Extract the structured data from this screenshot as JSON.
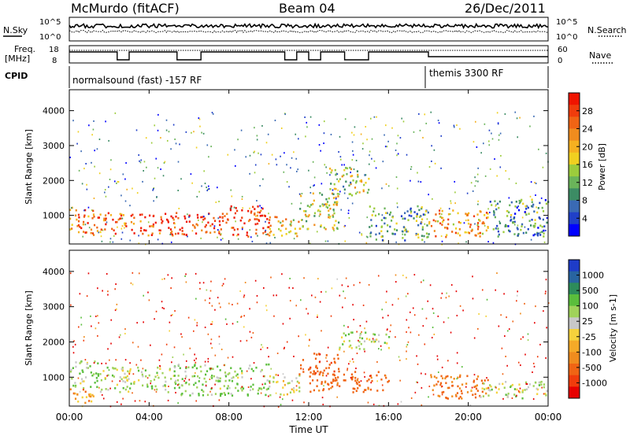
{
  "header": {
    "station": "McMurdo (fitACF)",
    "beam": "Beam 04",
    "date": "26/Dec/2011"
  },
  "noise_panel": {
    "left_label": "N.Sky",
    "right_label": "N.Search",
    "left_ticks": [
      "10^5",
      "10^0"
    ],
    "right_ticks": [
      "10^5",
      "10^0"
    ]
  },
  "freq_panel": {
    "left_label_1": "Freq.",
    "left_label_2": "[MHz]",
    "right_label": "Nave",
    "left_ticks": [
      "18",
      "8"
    ],
    "right_ticks": [
      "60",
      "0"
    ]
  },
  "cpid_panel": {
    "label": "CPID",
    "modes": [
      {
        "name": "normalsound (fast) -157 RF",
        "start_hour": 0
      },
      {
        "name": "themis 3300 RF",
        "start_hour": 18
      }
    ]
  },
  "power_panel": {
    "ylabel": "Slant Range [km]",
    "y_ticks": [
      "1000",
      "2000",
      "3000",
      "4000"
    ],
    "colorbar_label": "Power [dB]",
    "colorbar_ticks": [
      "4",
      "8",
      "12",
      "16",
      "20",
      "24",
      "28"
    ],
    "colors": [
      "#0000ff",
      "#2040c8",
      "#3a6ab4",
      "#3c8c64",
      "#6ab45a",
      "#9ccc3c",
      "#f0d020",
      "#f5b020",
      "#f08c1e",
      "#f06414",
      "#f03c0c",
      "#f01400"
    ]
  },
  "velocity_panel": {
    "ylabel": "Slant Range [km]",
    "y_ticks": [
      "1000",
      "2000",
      "3000",
      "4000"
    ],
    "colorbar_label": "Velocity [m s-1]",
    "colorbar_ticks": [
      "1000",
      "500",
      "100",
      "25",
      "-25",
      "-100",
      "-500",
      "-1000"
    ],
    "colors": [
      "#1e3cc8",
      "#2864a0",
      "#2d8c5a",
      "#5abe3c",
      "#a0d25a",
      "#c8c8c8",
      "#f5d23c",
      "#f5aa28",
      "#f08c1e",
      "#f06414",
      "#f03c0c",
      "#e60000"
    ]
  },
  "x_axis": {
    "label": "Time UT",
    "ticks": [
      "00:00",
      "04:00",
      "08:00",
      "12:00",
      "16:00",
      "20:00",
      "00:00"
    ]
  },
  "chart_data": [
    {
      "type": "heatmap",
      "title": "Power",
      "xlabel": "Time UT",
      "ylabel": "Slant Range [km]",
      "xlim": [
        0,
        24
      ],
      "ylim": [
        180,
        4600
      ],
      "colorbar": {
        "label": "Power [dB]",
        "range": [
          0,
          30
        ]
      },
      "regions": [
        {
          "t": [
            0.0,
            1.3
          ],
          "r": [
            420,
            1250
          ],
          "value": 22
        },
        {
          "t": [
            1.3,
            3.3
          ],
          "r": [
            500,
            1100
          ],
          "value": 24
        },
        {
          "t": [
            3.3,
            5.3
          ],
          "r": [
            450,
            1100
          ],
          "value": 26
        },
        {
          "t": [
            5.3,
            8.0
          ],
          "r": [
            450,
            1100
          ],
          "value": 27
        },
        {
          "t": [
            8.0,
            10.0
          ],
          "r": [
            420,
            1300
          ],
          "value": 28
        },
        {
          "t": [
            10.0,
            11.5
          ],
          "r": [
            400,
            1000
          ],
          "value": 18
        },
        {
          "t": [
            11.5,
            13.5
          ],
          "r": [
            600,
            1700
          ],
          "value": 16
        },
        {
          "t": [
            13.0,
            15.0
          ],
          "r": [
            1600,
            2400
          ],
          "value": 14
        },
        {
          "t": [
            15.0,
            18.0
          ],
          "r": [
            300,
            1300
          ],
          "value": 10
        },
        {
          "t": [
            18.0,
            21.0
          ],
          "r": [
            400,
            1200
          ],
          "value": 20
        },
        {
          "t": [
            21.0,
            24.0
          ],
          "r": [
            400,
            1500
          ],
          "value": 9
        }
      ]
    },
    {
      "type": "heatmap",
      "title": "Velocity",
      "xlabel": "Time UT",
      "ylabel": "Slant Range [km]",
      "xlim": [
        0,
        24
      ],
      "ylim": [
        180,
        4600
      ],
      "colorbar": {
        "label": "Velocity [m s-1]",
        "range": [
          -1000,
          1000
        ]
      },
      "regions": [
        {
          "t": [
            0.0,
            1.5
          ],
          "r": [
            700,
            1500
          ],
          "value": 80
        },
        {
          "t": [
            0.0,
            1.5
          ],
          "r": [
            300,
            700
          ],
          "value": -60
        },
        {
          "t": [
            1.5,
            5.0
          ],
          "r": [
            600,
            1300
          ],
          "value": 60
        },
        {
          "t": [
            5.0,
            10.0
          ],
          "r": [
            500,
            1400
          ],
          "value": 90
        },
        {
          "t": [
            10.0,
            11.5
          ],
          "r": [
            500,
            1100
          ],
          "value": 20
        },
        {
          "t": [
            11.5,
            13.5
          ],
          "r": [
            1100,
            1700
          ],
          "value": -200
        },
        {
          "t": [
            12.0,
            16.0
          ],
          "r": [
            600,
            1200
          ],
          "value": -150
        },
        {
          "t": [
            13.5,
            16.0
          ],
          "r": [
            1800,
            2300
          ],
          "value": 60
        },
        {
          "t": [
            18.0,
            21.0
          ],
          "r": [
            400,
            1100
          ],
          "value": -120
        },
        {
          "t": [
            20.5,
            24.0
          ],
          "r": [
            400,
            900
          ],
          "value": 50
        }
      ]
    }
  ]
}
